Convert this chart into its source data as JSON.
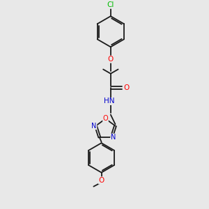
{
  "background_color": "#e8e8e8",
  "bond_color": "#1a1a1a",
  "atom_colors": {
    "O": "#ff0000",
    "N": "#0000cc",
    "Cl": "#00bb00",
    "C": "#1a1a1a"
  },
  "font_size": 7.5,
  "line_width": 1.3,
  "fig_size": [
    3.0,
    3.0
  ],
  "dpi": 100
}
